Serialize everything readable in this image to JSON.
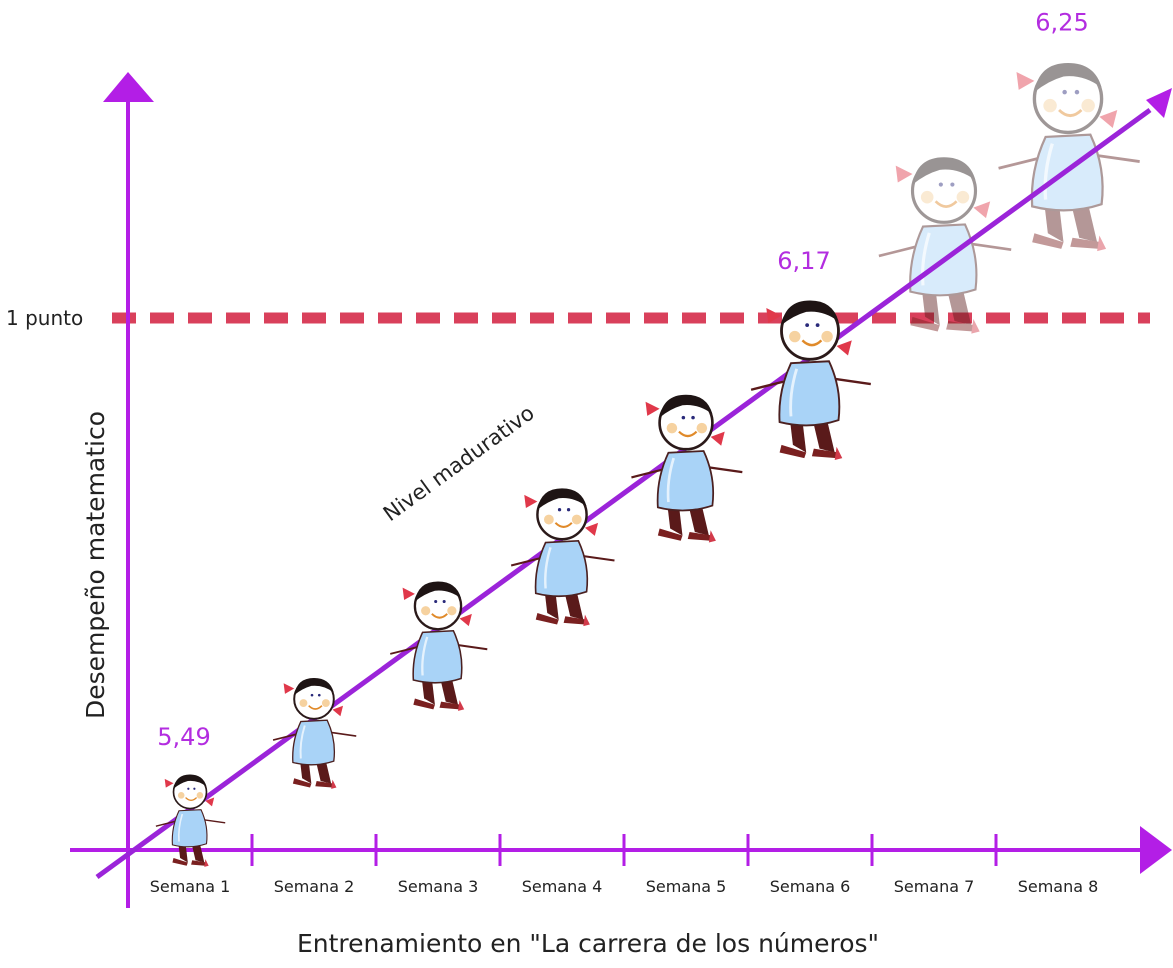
{
  "chart_data": {
    "type": "line",
    "title": "",
    "xlabel": "Entrenamiento en \"La carrera de los números\"",
    "ylabel": "Desempeño matematico",
    "categories": [
      "Semana 1",
      "Semana 2",
      "Semana 3",
      "Semana 4",
      "Semana 5",
      "Semana 6",
      "Semana 7",
      "Semana 8"
    ],
    "trend_label": "Nivel madurativo",
    "reference_line": {
      "label": "1 punto",
      "style": "dashed",
      "color": "#d9405b"
    },
    "annotations": [
      {
        "category": "Semana 1",
        "text": "5,49"
      },
      {
        "category": "Semana 6",
        "text": "6,17"
      },
      {
        "category": "Semana 8",
        "text": "6,25"
      }
    ],
    "figures": [
      {
        "category": "Semana 1",
        "scale": 0.55,
        "faded": false
      },
      {
        "category": "Semana 2",
        "scale": 0.66,
        "faded": false
      },
      {
        "category": "Semana 3",
        "scale": 0.77,
        "faded": false
      },
      {
        "category": "Semana 4",
        "scale": 0.82,
        "faded": false
      },
      {
        "category": "Semana 5",
        "scale": 0.88,
        "faded": false
      },
      {
        "category": "Semana 6",
        "scale": 0.95,
        "faded": false
      },
      {
        "category": "Semana 7",
        "scale": 1.05,
        "faded": true
      },
      {
        "category": "Semana 8",
        "scale": 1.12,
        "faded": true
      }
    ],
    "colors": {
      "axis": "#b31ee6",
      "trend": "#9b24d9",
      "annotation": "#b32de0",
      "reference": "#d9405b"
    }
  }
}
